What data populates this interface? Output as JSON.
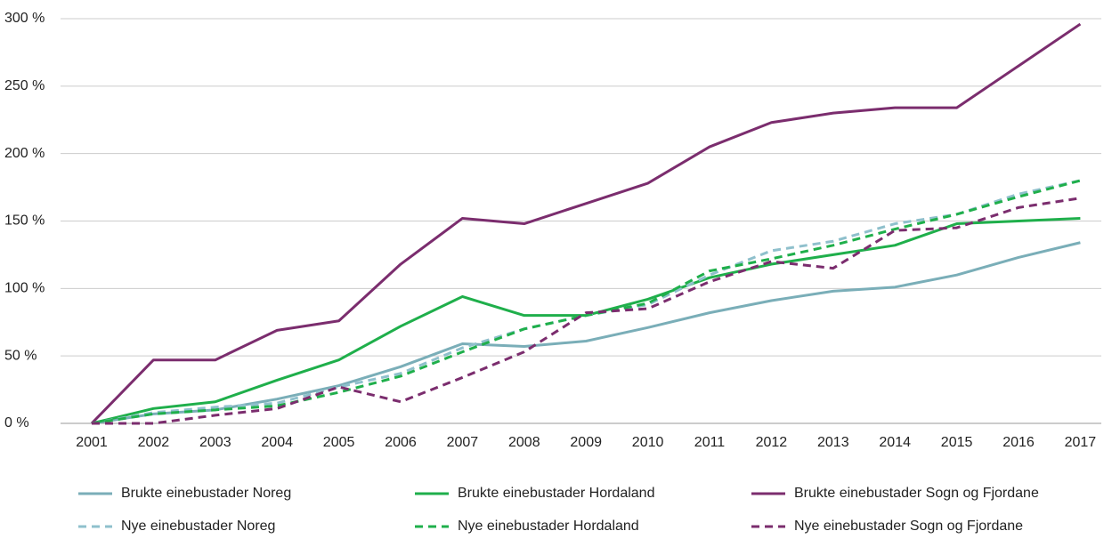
{
  "chart_data": {
    "type": "line",
    "categories": [
      "2001",
      "2002",
      "2003",
      "2004",
      "2005",
      "2006",
      "2007",
      "2008",
      "2009",
      "2010",
      "2011",
      "2012",
      "2013",
      "2014",
      "2015",
      "2016",
      "2017"
    ],
    "ylim": [
      0,
      300
    ],
    "yticks": [
      {
        "value": 0,
        "label": "0 %"
      },
      {
        "value": 50,
        "label": "50 %"
      },
      {
        "value": 100,
        "label": "100 %"
      },
      {
        "value": 150,
        "label": "150 %"
      },
      {
        "value": 200,
        "label": "200 %"
      },
      {
        "value": 250,
        "label": "250 %"
      },
      {
        "value": 300,
        "label": "300 %"
      }
    ],
    "grid": true,
    "series": [
      {
        "name": "Brukte einebustader Noreg",
        "color": "#7aaeb8",
        "dashed": false,
        "values": [
          0,
          7,
          10,
          18,
          28,
          42,
          59,
          57,
          61,
          71,
          82,
          91,
          98,
          101,
          110,
          123,
          134
        ]
      },
      {
        "name": "Brukte einebustader Hordaland",
        "color": "#1faf4b",
        "dashed": false,
        "values": [
          0,
          11,
          16,
          32,
          47,
          72,
          94,
          80,
          80,
          92,
          108,
          118,
          125,
          132,
          148,
          150,
          152
        ]
      },
      {
        "name": "Brukte einebustader Sogn og Fjordane",
        "color": "#7b2d6e",
        "dashed": false,
        "values": [
          0,
          47,
          47,
          69,
          76,
          118,
          152,
          148,
          163,
          178,
          205,
          223,
          230,
          234,
          234,
          265,
          296
        ]
      },
      {
        "name": "Nye einebustader Noreg",
        "color": "#8fc0cc",
        "dashed": true,
        "values": [
          0,
          8,
          12,
          15,
          27,
          37,
          56,
          70,
          80,
          88,
          110,
          128,
          135,
          148,
          155,
          170,
          180
        ]
      },
      {
        "name": "Nye einebustader Hordaland",
        "color": "#1faf4b",
        "dashed": true,
        "values": [
          0,
          7,
          10,
          13,
          23,
          35,
          53,
          70,
          80,
          89,
          113,
          122,
          132,
          144,
          155,
          168,
          180
        ]
      },
      {
        "name": "Nye einebustader Sogn og Fjordane",
        "color": "#7b2d6e",
        "dashed": true,
        "values": [
          0,
          0,
          6,
          11,
          27,
          16,
          34,
          53,
          82,
          85,
          105,
          120,
          115,
          143,
          145,
          160,
          167
        ]
      }
    ]
  }
}
